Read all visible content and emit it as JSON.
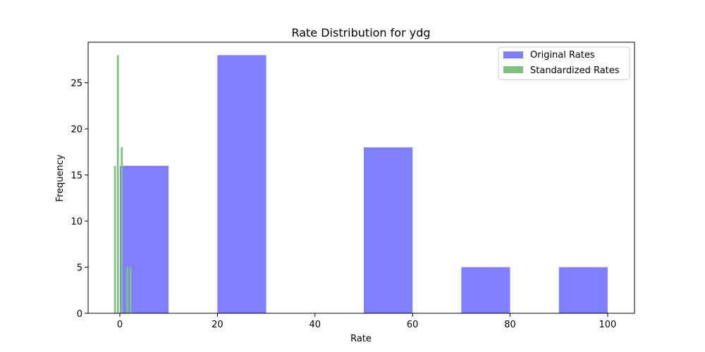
{
  "chart_data": {
    "type": "bar",
    "title": "Rate Distribution for ydg",
    "xlabel": "Rate",
    "ylabel": "Frequency",
    "xlim": [
      -6.5,
      105.5
    ],
    "ylim": [
      0,
      29.4
    ],
    "xticks": [
      0,
      20,
      40,
      60,
      80,
      100
    ],
    "yticks": [
      0,
      5,
      10,
      15,
      20,
      25
    ],
    "legend_position": "top-right",
    "grid": false,
    "series": [
      {
        "name": "Original Rates",
        "color": "#8080ff",
        "bins": [
          {
            "x0": 0,
            "x1": 10,
            "count": 16
          },
          {
            "x0": 20,
            "x1": 30,
            "count": 28
          },
          {
            "x0": 50,
            "x1": 60,
            "count": 18
          },
          {
            "x0": 70,
            "x1": 80,
            "count": 5
          },
          {
            "x0": 90,
            "x1": 100,
            "count": 5
          }
        ]
      },
      {
        "name": "Standardized Rates",
        "color": "#80c080",
        "bins": [
          {
            "x0": -1.2,
            "x1": -0.8,
            "count": 16
          },
          {
            "x0": -0.6,
            "x1": -0.2,
            "count": 28
          },
          {
            "x0": 0.2,
            "x1": 0.6,
            "count": 18
          },
          {
            "x0": 1.3,
            "x1": 1.7,
            "count": 5
          },
          {
            "x0": 2.0,
            "x1": 2.4,
            "count": 5
          }
        ]
      }
    ]
  }
}
